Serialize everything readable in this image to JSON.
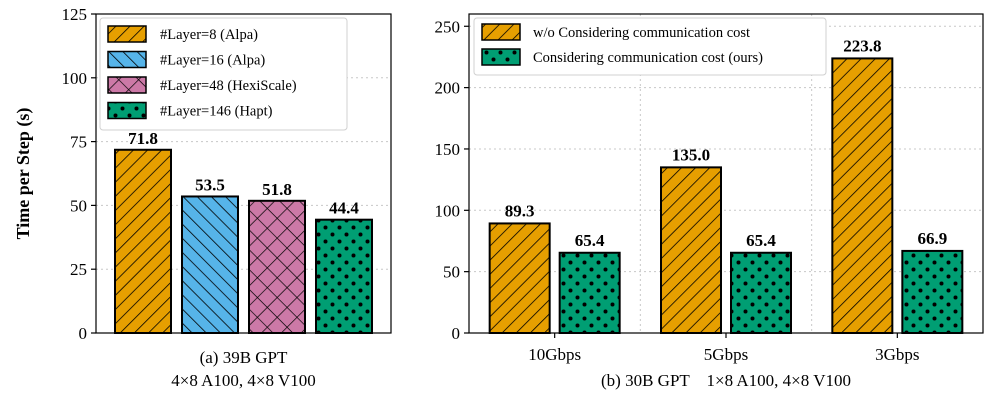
{
  "chart_data": [
    {
      "type": "bar",
      "ylabel": "Time per Step (s)",
      "ylim": [
        0,
        125
      ],
      "yticks": [
        0,
        25,
        50,
        75,
        100,
        125
      ],
      "grid": true,
      "legend_position": "top-left",
      "caption_lines": [
        "(a) 39B GPT",
        "4×8 A100, 4×8 V100"
      ],
      "series": [
        {
          "name": "#Layer=8 (Alpa)",
          "value": 71.8,
          "label": "71.8",
          "color": "#E69F00",
          "hatch": "diagonal"
        },
        {
          "name": "#Layer=16 (Alpa)",
          "value": 53.5,
          "label": "53.5",
          "color": "#56B4E9",
          "hatch": "backslash"
        },
        {
          "name": "#Layer=48 (HexiScale)",
          "value": 51.8,
          "label": "51.8",
          "color": "#CC79A7",
          "hatch": "cross"
        },
        {
          "name": "#Layer=146 (Hapt)",
          "value": 44.4,
          "label": "44.4",
          "color": "#009E73",
          "hatch": "dots"
        }
      ]
    },
    {
      "type": "bar",
      "ylim": [
        0,
        260
      ],
      "yticks": [
        0,
        50,
        100,
        150,
        200,
        250
      ],
      "grid": true,
      "legend_position": "top-left",
      "categories": [
        "10Gbps",
        "5Gbps",
        "3Gbps"
      ],
      "caption": "(b) 30B GPT    1×8 A100, 4×8 V100",
      "series": [
        {
          "name": "w/o Considering communication cost",
          "values": [
            89.3,
            135.0,
            223.8
          ],
          "labels": [
            "89.3",
            "135.0",
            "223.8"
          ],
          "color": "#E69F00",
          "hatch": "diagonal"
        },
        {
          "name": "Considering communication cost (ours)",
          "values": [
            65.4,
            65.4,
            66.9
          ],
          "labels": [
            "65.4",
            "65.4",
            "66.9"
          ],
          "color": "#009E73",
          "hatch": "dots"
        }
      ]
    }
  ]
}
